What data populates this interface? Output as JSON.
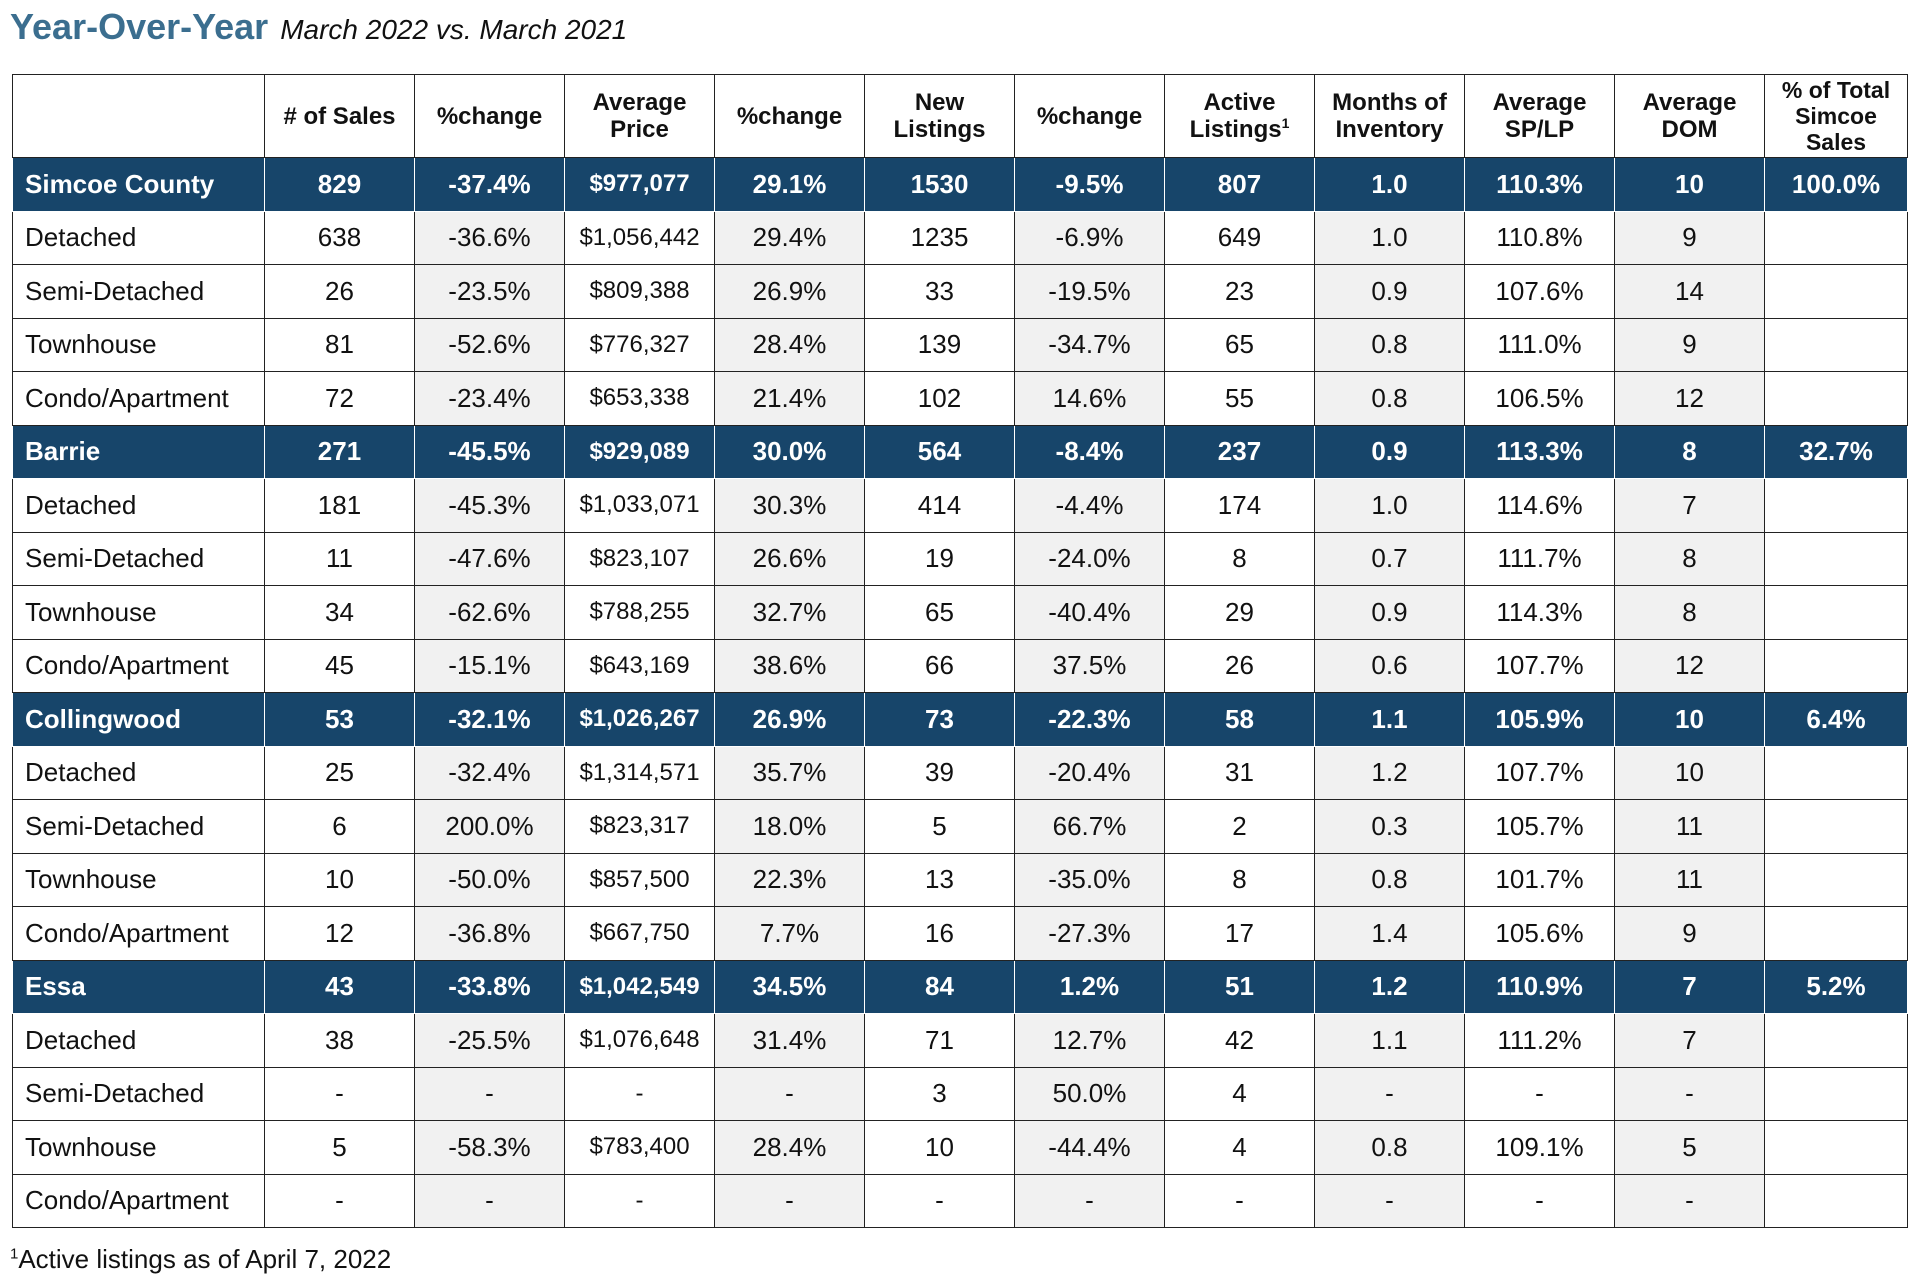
{
  "title": {
    "main": "Year-Over-Year",
    "sub": "March 2022 vs. March 2021"
  },
  "table": {
    "headers": [
      {
        "lines": [
          ""
        ]
      },
      {
        "lines": [
          "# of Sales"
        ]
      },
      {
        "lines": [
          "%change"
        ]
      },
      {
        "lines": [
          "Average",
          "Price"
        ]
      },
      {
        "lines": [
          "%change"
        ]
      },
      {
        "lines": [
          "New",
          "Listings"
        ]
      },
      {
        "lines": [
          "%change"
        ]
      },
      {
        "lines": [
          "Active",
          "Listings"
        ],
        "sup": "1"
      },
      {
        "lines": [
          "Months of",
          "Inventory"
        ]
      },
      {
        "lines": [
          "Average",
          "SP/LP"
        ]
      },
      {
        "lines": [
          "Average",
          "DOM"
        ]
      },
      {
        "lines": [
          "% of Total",
          "Simcoe",
          "Sales"
        ]
      }
    ],
    "rows": [
      {
        "type": "region",
        "cells": [
          "Simcoe County",
          "829",
          "-37.4%",
          "$977,077",
          "29.1%",
          "1530",
          "-9.5%",
          "807",
          "1.0",
          "110.3%",
          "10",
          "100.0%"
        ]
      },
      {
        "type": "sub",
        "cells": [
          "Detached",
          "638",
          "-36.6%",
          "$1,056,442",
          "29.4%",
          "1235",
          "-6.9%",
          "649",
          "1.0",
          "110.8%",
          "9",
          ""
        ]
      },
      {
        "type": "sub",
        "cells": [
          "Semi-Detached",
          "26",
          "-23.5%",
          "$809,388",
          "26.9%",
          "33",
          "-19.5%",
          "23",
          "0.9",
          "107.6%",
          "14",
          ""
        ]
      },
      {
        "type": "sub",
        "cells": [
          "Townhouse",
          "81",
          "-52.6%",
          "$776,327",
          "28.4%",
          "139",
          "-34.7%",
          "65",
          "0.8",
          "111.0%",
          "9",
          ""
        ]
      },
      {
        "type": "sub",
        "cells": [
          "Condo/Apartment",
          "72",
          "-23.4%",
          "$653,338",
          "21.4%",
          "102",
          "14.6%",
          "55",
          "0.8",
          "106.5%",
          "12",
          ""
        ]
      },
      {
        "type": "region",
        "cells": [
          "Barrie",
          "271",
          "-45.5%",
          "$929,089",
          "30.0%",
          "564",
          "-8.4%",
          "237",
          "0.9",
          "113.3%",
          "8",
          "32.7%"
        ]
      },
      {
        "type": "sub",
        "cells": [
          "Detached",
          "181",
          "-45.3%",
          "$1,033,071",
          "30.3%",
          "414",
          "-4.4%",
          "174",
          "1.0",
          "114.6%",
          "7",
          ""
        ]
      },
      {
        "type": "sub",
        "cells": [
          "Semi-Detached",
          "11",
          "-47.6%",
          "$823,107",
          "26.6%",
          "19",
          "-24.0%",
          "8",
          "0.7",
          "111.7%",
          "8",
          ""
        ]
      },
      {
        "type": "sub",
        "cells": [
          "Townhouse",
          "34",
          "-62.6%",
          "$788,255",
          "32.7%",
          "65",
          "-40.4%",
          "29",
          "0.9",
          "114.3%",
          "8",
          ""
        ]
      },
      {
        "type": "sub",
        "cells": [
          "Condo/Apartment",
          "45",
          "-15.1%",
          "$643,169",
          "38.6%",
          "66",
          "37.5%",
          "26",
          "0.6",
          "107.7%",
          "12",
          ""
        ]
      },
      {
        "type": "region",
        "cells": [
          "Collingwood",
          "53",
          "-32.1%",
          "$1,026,267",
          "26.9%",
          "73",
          "-22.3%",
          "58",
          "1.1",
          "105.9%",
          "10",
          "6.4%"
        ]
      },
      {
        "type": "sub",
        "cells": [
          "Detached",
          "25",
          "-32.4%",
          "$1,314,571",
          "35.7%",
          "39",
          "-20.4%",
          "31",
          "1.2",
          "107.7%",
          "10",
          ""
        ]
      },
      {
        "type": "sub",
        "cells": [
          "Semi-Detached",
          "6",
          "200.0%",
          "$823,317",
          "18.0%",
          "5",
          "66.7%",
          "2",
          "0.3",
          "105.7%",
          "11",
          ""
        ]
      },
      {
        "type": "sub",
        "cells": [
          "Townhouse",
          "10",
          "-50.0%",
          "$857,500",
          "22.3%",
          "13",
          "-35.0%",
          "8",
          "0.8",
          "101.7%",
          "11",
          ""
        ]
      },
      {
        "type": "sub",
        "cells": [
          "Condo/Apartment",
          "12",
          "-36.8%",
          "$667,750",
          "7.7%",
          "16",
          "-27.3%",
          "17",
          "1.4",
          "105.6%",
          "9",
          ""
        ]
      },
      {
        "type": "region",
        "cells": [
          "Essa",
          "43",
          "-33.8%",
          "$1,042,549",
          "34.5%",
          "84",
          "1.2%",
          "51",
          "1.2",
          "110.9%",
          "7",
          "5.2%"
        ]
      },
      {
        "type": "sub",
        "cells": [
          "Detached",
          "38",
          "-25.5%",
          "$1,076,648",
          "31.4%",
          "71",
          "12.7%",
          "42",
          "1.1",
          "111.2%",
          "7",
          ""
        ]
      },
      {
        "type": "sub",
        "cells": [
          "Semi-Detached",
          "-",
          "-",
          "-",
          "-",
          "3",
          "50.0%",
          "4",
          "-",
          "-",
          "-",
          ""
        ]
      },
      {
        "type": "sub",
        "cells": [
          "Townhouse",
          "5",
          "-58.3%",
          "$783,400",
          "28.4%",
          "10",
          "-44.4%",
          "4",
          "0.8",
          "109.1%",
          "5",
          ""
        ]
      },
      {
        "type": "sub",
        "cells": [
          "Condo/Apartment",
          "-",
          "-",
          "-",
          "-",
          "-",
          "-",
          "-",
          "-",
          "-",
          "-",
          ""
        ]
      }
    ]
  },
  "footnote": {
    "marker": "1",
    "text": "Active listings as of April 7, 2022"
  },
  "colors": {
    "title": "#3b6e8f",
    "region_row_bg": "#17456a",
    "region_row_text": "#ffffff",
    "shaded_cell_bg": "#f1f1f1",
    "border": "#222222"
  }
}
